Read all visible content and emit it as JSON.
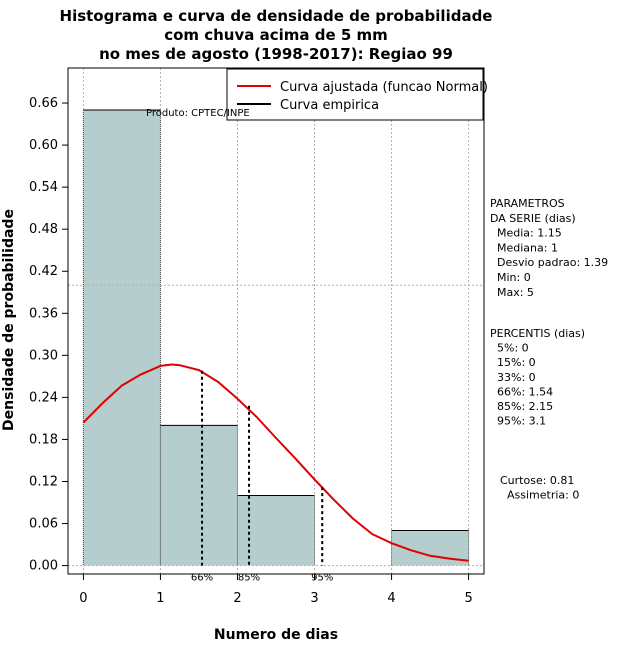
{
  "chart_data": {
    "type": "bar",
    "title_lines": [
      "Histograma e curva de densidade de probabilidade",
      "com chuva acima de 5 mm",
      "no mes de agosto (1998-2017): Regiao 99"
    ],
    "xlabel": "Numero de dias",
    "ylabel": "Densidade de probabilidade",
    "xlim": [
      -0.2,
      5.2
    ],
    "ylim": [
      -0.012,
      0.71
    ],
    "x_ticks": [
      0,
      1,
      2,
      3,
      4,
      5
    ],
    "y_ticks": [
      0.0,
      0.06,
      0.12,
      0.18,
      0.24,
      0.3,
      0.36,
      0.42,
      0.48,
      0.54,
      0.6,
      0.66
    ],
    "y_tick_labels": [
      "0.00",
      "0.06",
      "0.12",
      "0.18",
      "0.24",
      "0.30",
      "0.36",
      "0.42",
      "0.48",
      "0.54",
      "0.60",
      "0.66"
    ],
    "bins": [
      {
        "x0": 0,
        "x1": 1,
        "density": 0.65
      },
      {
        "x0": 1,
        "x1": 2,
        "density": 0.2
      },
      {
        "x0": 2,
        "x1": 3,
        "density": 0.1
      },
      {
        "x0": 3,
        "x1": 4,
        "density": 0.0
      },
      {
        "x0": 4,
        "x1": 5,
        "density": 0.05
      }
    ],
    "bar_color": "#b5cdcd",
    "curve_color": "#e00000",
    "fitted_curve": {
      "name": "Curva ajustada (funcao Normal)",
      "x": [
        0,
        0.25,
        0.5,
        0.75,
        1.0,
        1.15,
        1.25,
        1.5,
        1.75,
        2.0,
        2.25,
        2.5,
        2.75,
        3.0,
        3.25,
        3.5,
        3.75,
        4.0,
        4.25,
        4.5,
        4.75,
        5.0
      ],
      "y": [
        0.204,
        0.232,
        0.257,
        0.273,
        0.285,
        0.287,
        0.286,
        0.279,
        0.262,
        0.238,
        0.212,
        0.182,
        0.153,
        0.123,
        0.094,
        0.067,
        0.045,
        0.032,
        0.022,
        0.014,
        0.01,
        0.007
      ]
    },
    "empirical_curve": {
      "name": "Curva empirica"
    },
    "percentile_markers": [
      {
        "label": "66%",
        "x": 1.54,
        "y": 0.278
      },
      {
        "label": "85%",
        "x": 2.15,
        "y": 0.228
      },
      {
        "label": "95%",
        "x": 3.1,
        "y": 0.112
      }
    ],
    "reference_line_y": 0.4,
    "legend_position": "top-right",
    "annotation": "Produto: CPTEC/INPE",
    "side_panel": {
      "parametros": [
        "PARAMETROS",
        "DA SERIE (dias)",
        "  Media: 1.15",
        "  Mediana: 1",
        "  Desvio padrao: 1.39",
        "  Min: 0",
        "  Max: 5"
      ],
      "percentis": [
        "PERCENTIS (dias)",
        "  5%: 0",
        "  15%: 0",
        "  33%: 0",
        "  66%: 1.54",
        "  85%: 2.15",
        "  95%: 3.1"
      ],
      "outros": [
        "Curtose: 0.81",
        "  Assimetria: 0"
      ]
    }
  }
}
